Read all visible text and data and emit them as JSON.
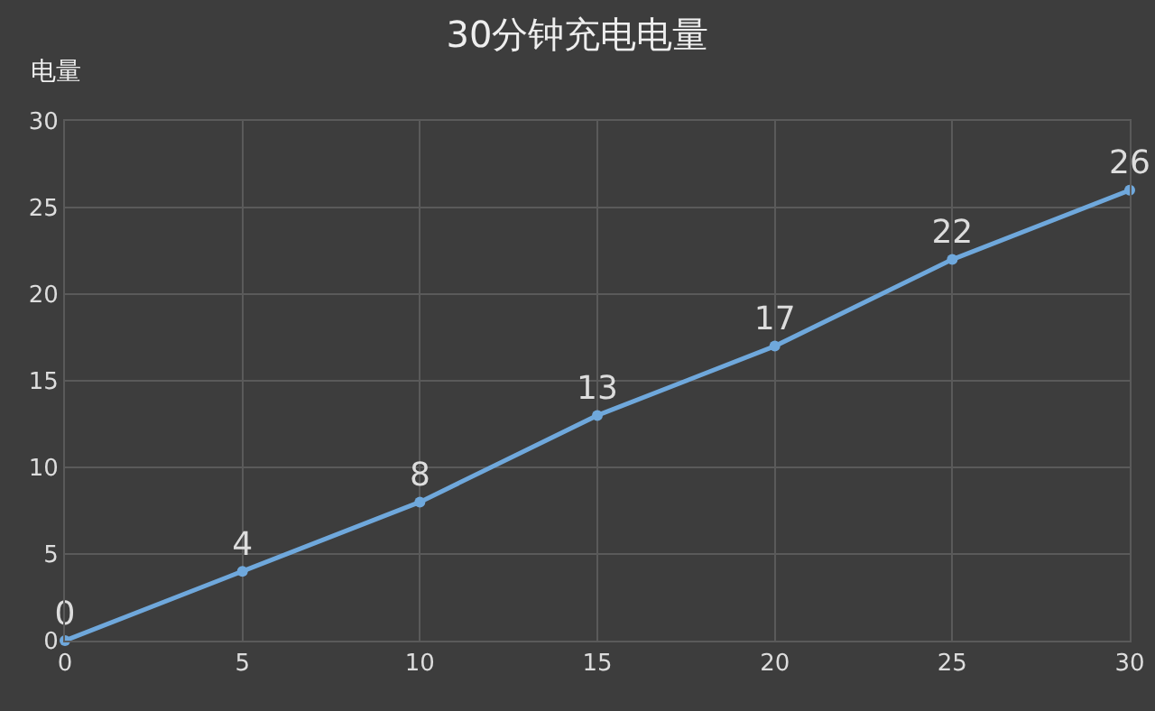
{
  "chart_data": {
    "type": "line",
    "title": "30分钟充电电量",
    "ylabel": "电量",
    "x": [
      0,
      5,
      10,
      15,
      20,
      25,
      30
    ],
    "series": [
      {
        "color": "#6fa8dc",
        "values": [
          0,
          4,
          8,
          13,
          17,
          22,
          26
        ]
      }
    ],
    "xlim": [
      0,
      30
    ],
    "xticks": [
      0,
      5,
      10,
      15,
      20,
      25,
      30
    ],
    "ylim": [
      0,
      30
    ],
    "yticks": [
      0,
      5,
      10,
      15,
      20,
      25,
      30
    ],
    "grid": true,
    "marker": "circle",
    "line_style": "solid",
    "data_labels": true
  }
}
